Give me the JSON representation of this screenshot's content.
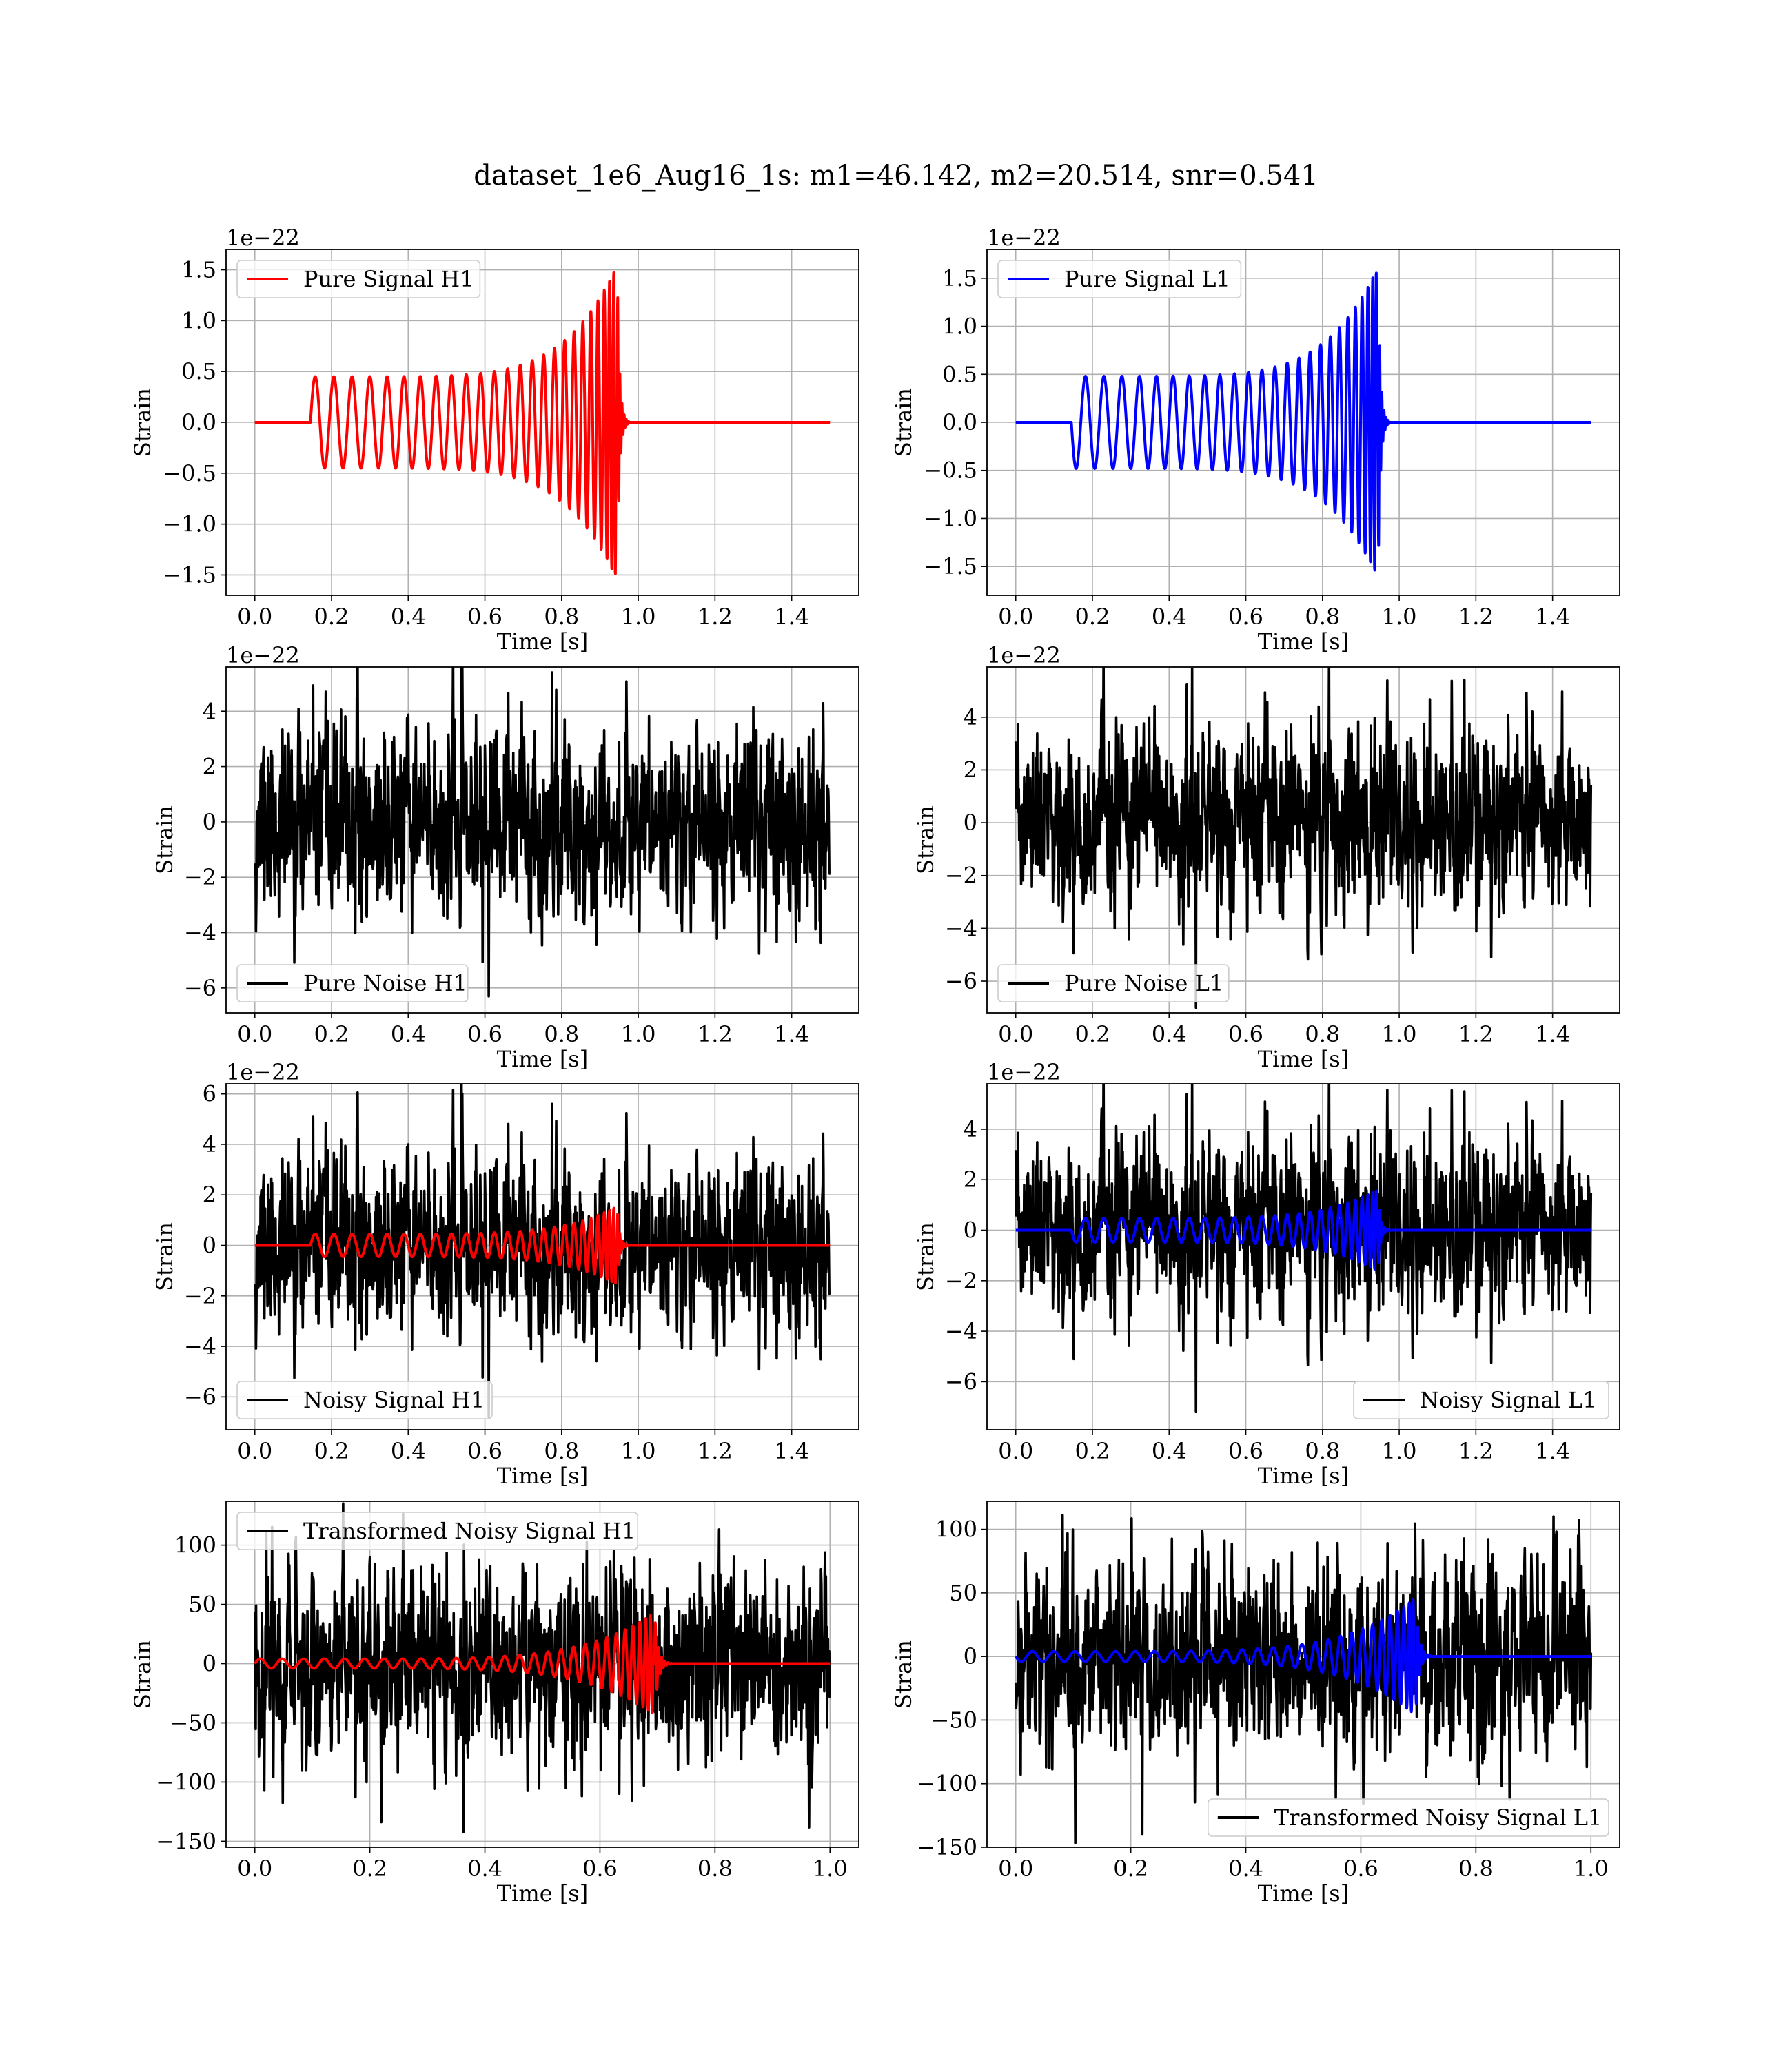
{
  "figure": {
    "suptitle": "dataset_1e6_Aug16_1s: m1=46.142, m2=20.514, snr=0.541",
    "colors": {
      "h1": "#ff0000",
      "l1": "#0000ff",
      "noise": "#000000",
      "grid": "#b0b0b0"
    }
  },
  "chart_data": [
    {
      "type": "line",
      "detector": "H1",
      "kind": "signal",
      "xlabel": "Time [s]",
      "ylabel": "Strain",
      "offset_text": "1e−22",
      "xlim": [
        -0.075,
        1.575
      ],
      "ylim": [
        -1.7,
        1.7
      ],
      "xticks": [
        0.0,
        0.2,
        0.4,
        0.6,
        0.8,
        1.0,
        1.2,
        1.4
      ],
      "xtick_labels": [
        "0.0",
        "0.2",
        "0.4",
        "0.6",
        "0.8",
        "1.0",
        "1.2",
        "1.4"
      ],
      "yticks": [
        -1.5,
        -1.0,
        -0.5,
        0.0,
        0.5,
        1.0,
        1.5
      ],
      "ytick_labels": [
        "−1.5",
        "−1.0",
        "−0.5",
        "0.0",
        "0.5",
        "1.0",
        "1.5"
      ],
      "legend_loc": "upper left",
      "grid": true,
      "series": [
        {
          "name": "Pure Signal H1",
          "color": "#ff0000",
          "role": "chirp",
          "t_start": 0.145,
          "t_merge": 0.945,
          "t_end": 1.5,
          "amp_start": 0.45,
          "amp_peak": 1.55,
          "phase": 0,
          "cycles": 25
        }
      ]
    },
    {
      "type": "line",
      "detector": "L1",
      "kind": "signal",
      "xlabel": "Time [s]",
      "ylabel": "Strain",
      "offset_text": "1e−22",
      "xlim": [
        -0.075,
        1.575
      ],
      "ylim": [
        -1.8,
        1.8
      ],
      "xticks": [
        0.0,
        0.2,
        0.4,
        0.6,
        0.8,
        1.0,
        1.2,
        1.4
      ],
      "xtick_labels": [
        "0.0",
        "0.2",
        "0.4",
        "0.6",
        "0.8",
        "1.0",
        "1.2",
        "1.4"
      ],
      "yticks": [
        -1.5,
        -1.0,
        -0.5,
        0.0,
        0.5,
        1.0,
        1.5
      ],
      "ytick_labels": [
        "−1.5",
        "−1.0",
        "−0.5",
        "0.0",
        "0.5",
        "1.0",
        "1.5"
      ],
      "legend_loc": "upper left",
      "grid": true,
      "series": [
        {
          "name": "Pure Signal L1",
          "color": "#0000ff",
          "role": "chirp",
          "t_start": 0.145,
          "t_merge": 0.945,
          "t_end": 1.5,
          "amp_start": 0.48,
          "amp_peak": 1.62,
          "phase": 3.14159,
          "cycles": 25
        }
      ]
    },
    {
      "type": "line",
      "detector": "H1",
      "kind": "noise",
      "xlabel": "Time [s]",
      "ylabel": "Strain",
      "offset_text": "1e−22",
      "xlim": [
        -0.075,
        1.575
      ],
      "ylim": [
        -6.9,
        5.6
      ],
      "xticks": [
        0.0,
        0.2,
        0.4,
        0.6,
        0.8,
        1.0,
        1.2,
        1.4
      ],
      "xtick_labels": [
        "0.0",
        "0.2",
        "0.4",
        "0.6",
        "0.8",
        "1.0",
        "1.2",
        "1.4"
      ],
      "yticks": [
        -6,
        -4,
        -2,
        0,
        2,
        4
      ],
      "ytick_labels": [
        "−6",
        "−4",
        "−2",
        "0",
        "2",
        "4"
      ],
      "legend_loc": "lower left",
      "grid": true,
      "series": [
        {
          "name": "Pure Noise H1",
          "color": "#000000",
          "role": "noise",
          "t_end": 1.5,
          "n": 1500,
          "sigma": 1.55,
          "seed": 11,
          "min_at": 0.61,
          "min_val": -6.3,
          "max_at": 0.775,
          "max_val": 5.4
        }
      ]
    },
    {
      "type": "line",
      "detector": "L1",
      "kind": "noise",
      "xlabel": "Time [s]",
      "ylabel": "Strain",
      "offset_text": "1e−22",
      "xlim": [
        -0.075,
        1.575
      ],
      "ylim": [
        -7.2,
        5.9
      ],
      "xticks": [
        0.0,
        0.2,
        0.4,
        0.6,
        0.8,
        1.0,
        1.2,
        1.4
      ],
      "xtick_labels": [
        "0.0",
        "0.2",
        "0.4",
        "0.6",
        "0.8",
        "1.0",
        "1.2",
        "1.4"
      ],
      "yticks": [
        -6,
        -4,
        -2,
        0,
        2,
        4
      ],
      "ytick_labels": [
        "−6",
        "−4",
        "−2",
        "0",
        "2",
        "4"
      ],
      "legend_loc": "lower left",
      "grid": true,
      "series": [
        {
          "name": "Pure Noise L1",
          "color": "#000000",
          "role": "noise",
          "t_end": 1.5,
          "n": 1500,
          "sigma": 1.55,
          "seed": 23,
          "min_at": 0.47,
          "min_val": -7.0,
          "max_at": 1.17,
          "max_val": 5.4
        }
      ]
    },
    {
      "type": "line",
      "detector": "H1",
      "kind": "noisy",
      "xlabel": "Time [s]",
      "ylabel": "Strain",
      "offset_text": "1e−22",
      "xlim": [
        -0.075,
        1.575
      ],
      "ylim": [
        -7.3,
        6.4
      ],
      "xticks": [
        0.0,
        0.2,
        0.4,
        0.6,
        0.8,
        1.0,
        1.2,
        1.4
      ],
      "xtick_labels": [
        "0.0",
        "0.2",
        "0.4",
        "0.6",
        "0.8",
        "1.0",
        "1.2",
        "1.4"
      ],
      "yticks": [
        -6,
        -4,
        -2,
        0,
        2,
        4,
        6
      ],
      "ytick_labels": [
        "−6",
        "−4",
        "−2",
        "0",
        "2",
        "4",
        "6"
      ],
      "legend_loc": "lower left",
      "grid": true,
      "series": [
        {
          "name": "Noisy Signal H1",
          "color": "#000000",
          "role": "noise",
          "t_end": 1.5,
          "n": 1500,
          "sigma": 1.6,
          "seed": 11,
          "min_at": 0.61,
          "min_val": -6.8,
          "max_at": 0.775,
          "max_val": 5.6
        },
        {
          "name": "",
          "color": "#ff0000",
          "role": "chirp",
          "t_start": 0.145,
          "t_merge": 0.945,
          "t_end": 1.5,
          "amp_start": 0.45,
          "amp_peak": 1.55,
          "phase": 0,
          "cycles": 25
        }
      ]
    },
    {
      "type": "line",
      "detector": "L1",
      "kind": "noisy",
      "xlabel": "Time [s]",
      "ylabel": "Strain",
      "offset_text": "1e−22",
      "xlim": [
        -0.075,
        1.575
      ],
      "ylim": [
        -7.9,
        5.8
      ],
      "xticks": [
        0.0,
        0.2,
        0.4,
        0.6,
        0.8,
        1.0,
        1.2,
        1.4
      ],
      "xtick_labels": [
        "0.0",
        "0.2",
        "0.4",
        "0.6",
        "0.8",
        "1.0",
        "1.2",
        "1.4"
      ],
      "yticks": [
        -6,
        -4,
        -2,
        0,
        2,
        4
      ],
      "ytick_labels": [
        "−6",
        "−4",
        "−2",
        "0",
        "2",
        "4"
      ],
      "legend_loc": "lower right",
      "grid": true,
      "series": [
        {
          "name": "Noisy Signal L1",
          "color": "#000000",
          "role": "noise",
          "t_end": 1.5,
          "n": 1500,
          "sigma": 1.6,
          "seed": 23,
          "min_at": 0.47,
          "min_val": -7.2,
          "max_at": 1.17,
          "max_val": 5.5
        },
        {
          "name": "",
          "color": "#0000ff",
          "role": "chirp",
          "t_start": 0.145,
          "t_merge": 0.945,
          "t_end": 1.5,
          "amp_start": 0.48,
          "amp_peak": 1.62,
          "phase": 3.14159,
          "cycles": 25
        }
      ]
    },
    {
      "type": "line",
      "detector": "H1",
      "kind": "transformed",
      "xlabel": "Time [s]",
      "ylabel": "Strain",
      "offset_text": "",
      "xlim": [
        -0.05,
        1.05
      ],
      "ylim": [
        -155,
        137
      ],
      "xticks": [
        0.0,
        0.2,
        0.4,
        0.6,
        0.8,
        1.0
      ],
      "xtick_labels": [
        "0.0",
        "0.2",
        "0.4",
        "0.6",
        "0.8",
        "1.0"
      ],
      "yticks": [
        -150,
        -100,
        -50,
        0,
        50,
        100
      ],
      "ytick_labels": [
        "−150",
        "−100",
        "−50",
        "0",
        "50",
        "100"
      ],
      "legend_loc": "upper left",
      "grid": true,
      "series": [
        {
          "name": "Transformed Noisy Signal H1",
          "color": "#000000",
          "role": "noise",
          "t_end": 1.0,
          "n": 1400,
          "sigma": 38,
          "seed": 37,
          "min_at": 0.363,
          "min_val": -142,
          "max_at": 0.02,
          "max_val": 110
        },
        {
          "name": "",
          "color": "#ff0000",
          "role": "chirp",
          "t_start": 0.0,
          "t_merge": 0.695,
          "t_end": 1.0,
          "amp_start": 4,
          "amp_peak": 43,
          "phase": 0,
          "cycles": 28
        }
      ]
    },
    {
      "type": "line",
      "detector": "L1",
      "kind": "transformed",
      "xlabel": "Time [s]",
      "ylabel": "Strain",
      "offset_text": "",
      "xlim": [
        -0.05,
        1.05
      ],
      "ylim": [
        -150,
        122
      ],
      "xticks": [
        0.0,
        0.2,
        0.4,
        0.6,
        0.8,
        1.0
      ],
      "xtick_labels": [
        "0.0",
        "0.2",
        "0.4",
        "0.6",
        "0.8",
        "1.0"
      ],
      "yticks": [
        -150,
        -100,
        -50,
        0,
        50,
        100
      ],
      "ytick_labels": [
        "−150",
        "−100",
        "−50",
        "0",
        "50",
        "100"
      ],
      "legend_loc": "lower right",
      "grid": true,
      "series": [
        {
          "name": "Transformed Noisy Signal L1",
          "color": "#000000",
          "role": "noise",
          "t_end": 1.0,
          "n": 1400,
          "sigma": 36,
          "seed": 41,
          "min_at": 0.22,
          "min_val": -140,
          "max_at": 0.935,
          "max_val": 110
        },
        {
          "name": "",
          "color": "#0000ff",
          "role": "chirp",
          "t_start": 0.0,
          "t_merge": 0.695,
          "t_end": 1.0,
          "amp_start": 4,
          "amp_peak": 46,
          "phase": 3.14159,
          "cycles": 28
        }
      ]
    }
  ]
}
